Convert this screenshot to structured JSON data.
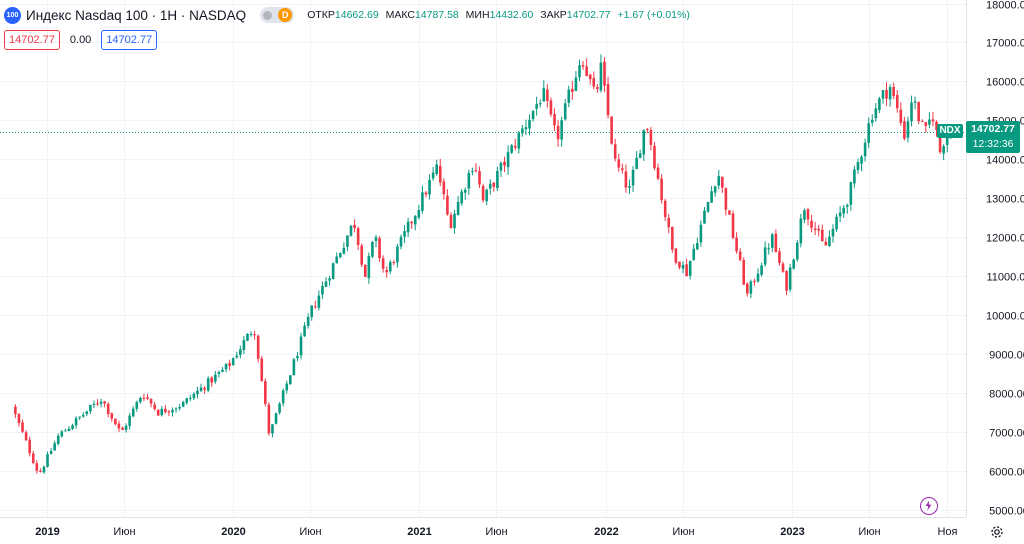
{
  "legend": {
    "icon_text": "100",
    "title": "Индекс Nasdaq 100 · 1Н · NASDAQ",
    "toggle_letter": "D",
    "open_label": "ОТКР",
    "open_value": "14662.69",
    "high_label": "МАКС",
    "high_value": "14787.58",
    "low_label": "МИН",
    "low_value": "14432.60",
    "close_label": "ЗАКР",
    "close_value": "14702.77",
    "change_value": "+1.67 (+0.01%)"
  },
  "price_boxes": {
    "sell": "14702.77",
    "spread": "0.00",
    "buy": "14702.77"
  },
  "badge": {
    "symbol": "NDX",
    "price": "14702.77",
    "countdown": "12:32:36"
  },
  "colors": {
    "up": "#089981",
    "down": "#f23645",
    "grid": "#f0f3fa",
    "accent": "#2962ff"
  },
  "icons": {
    "flash": "flash-icon",
    "settings": "gear-icon"
  },
  "chart_data": {
    "type": "candlestick",
    "title": "Индекс Nasdaq 100 · 1Н · NASDAQ",
    "y_axis": {
      "min": 5000,
      "max": 18000,
      "ticks": [
        5000,
        6000,
        7000,
        8000,
        9000,
        10000,
        11000,
        12000,
        13000,
        14000,
        15000,
        16000,
        17000,
        18000
      ],
      "tick_labels": [
        "5000.00",
        "6000.00",
        "7000.00",
        "8000.00",
        "9000.00",
        "10000.00",
        "11000.00",
        "12000.00",
        "13000.00",
        "14000.00",
        "15000.00",
        "16000.00",
        "17000.00",
        "18000.00"
      ],
      "position": "right"
    },
    "x_axis": {
      "start": "2018-11-01",
      "end": "2023-11-20",
      "ticks": [
        {
          "date": "2019-01-01",
          "label": "2019"
        },
        {
          "date": "2019-06-01",
          "label": "Июн"
        },
        {
          "date": "2020-01-01",
          "label": "2020"
        },
        {
          "date": "2020-06-01",
          "label": "Июн"
        },
        {
          "date": "2021-01-01",
          "label": "2021"
        },
        {
          "date": "2021-06-01",
          "label": "Июн"
        },
        {
          "date": "2022-01-01",
          "label": "2022"
        },
        {
          "date": "2022-06-01",
          "label": "Июн"
        },
        {
          "date": "2023-01-01",
          "label": "2023"
        },
        {
          "date": "2023-06-01",
          "label": "Июн"
        },
        {
          "date": "2023-11-01",
          "label": "Ноя"
        }
      ]
    },
    "grid": true,
    "last_price": 14702.77,
    "anchors": [
      [
        "2018-11-01",
        7650
      ],
      [
        "2018-12-24",
        5900
      ],
      [
        "2019-02-01",
        6900
      ],
      [
        "2019-04-26",
        7850
      ],
      [
        "2019-06-03",
        6950
      ],
      [
        "2019-07-15",
        8000
      ],
      [
        "2019-08-15",
        7500
      ],
      [
        "2019-10-01",
        7700
      ],
      [
        "2019-12-31",
        8700
      ],
      [
        "2020-02-19",
        9700
      ],
      [
        "2020-03-20",
        6900
      ],
      [
        "2020-06-10",
        10100
      ],
      [
        "2020-09-02",
        12400
      ],
      [
        "2020-09-24",
        11000
      ],
      [
        "2020-10-12",
        12000
      ],
      [
        "2020-11-02",
        11000
      ],
      [
        "2021-02-12",
        13800
      ],
      [
        "2021-03-08",
        12300
      ],
      [
        "2021-04-26",
        14000
      ],
      [
        "2021-05-12",
        12900
      ],
      [
        "2021-09-07",
        15700
      ],
      [
        "2021-10-04",
        14500
      ],
      [
        "2021-11-22",
        16700
      ],
      [
        "2021-12-20",
        15500
      ],
      [
        "2021-12-28",
        16500
      ],
      [
        "2022-01-27",
        13900
      ],
      [
        "2022-02-24",
        13200
      ],
      [
        "2022-03-29",
        15000
      ],
      [
        "2022-05-20",
        11600
      ],
      [
        "2022-06-16",
        11100
      ],
      [
        "2022-08-16",
        13700
      ],
      [
        "2022-10-13",
        10500
      ],
      [
        "2022-11-30",
        12000
      ],
      [
        "2022-12-28",
        10700
      ],
      [
        "2023-02-02",
        12800
      ],
      [
        "2023-03-13",
        11700
      ],
      [
        "2023-05-01",
        13100
      ],
      [
        "2023-06-15",
        15200
      ],
      [
        "2023-07-19",
        15900
      ],
      [
        "2023-08-18",
        14600
      ],
      [
        "2023-09-01",
        15600
      ],
      [
        "2023-09-26",
        14600
      ],
      [
        "2023-10-11",
        15200
      ],
      [
        "2023-10-26",
        14200
      ],
      [
        "2023-11-06",
        14662
      ],
      [
        "2023-11-13",
        14702.77
      ]
    ],
    "candle_interval_days": 7
  }
}
